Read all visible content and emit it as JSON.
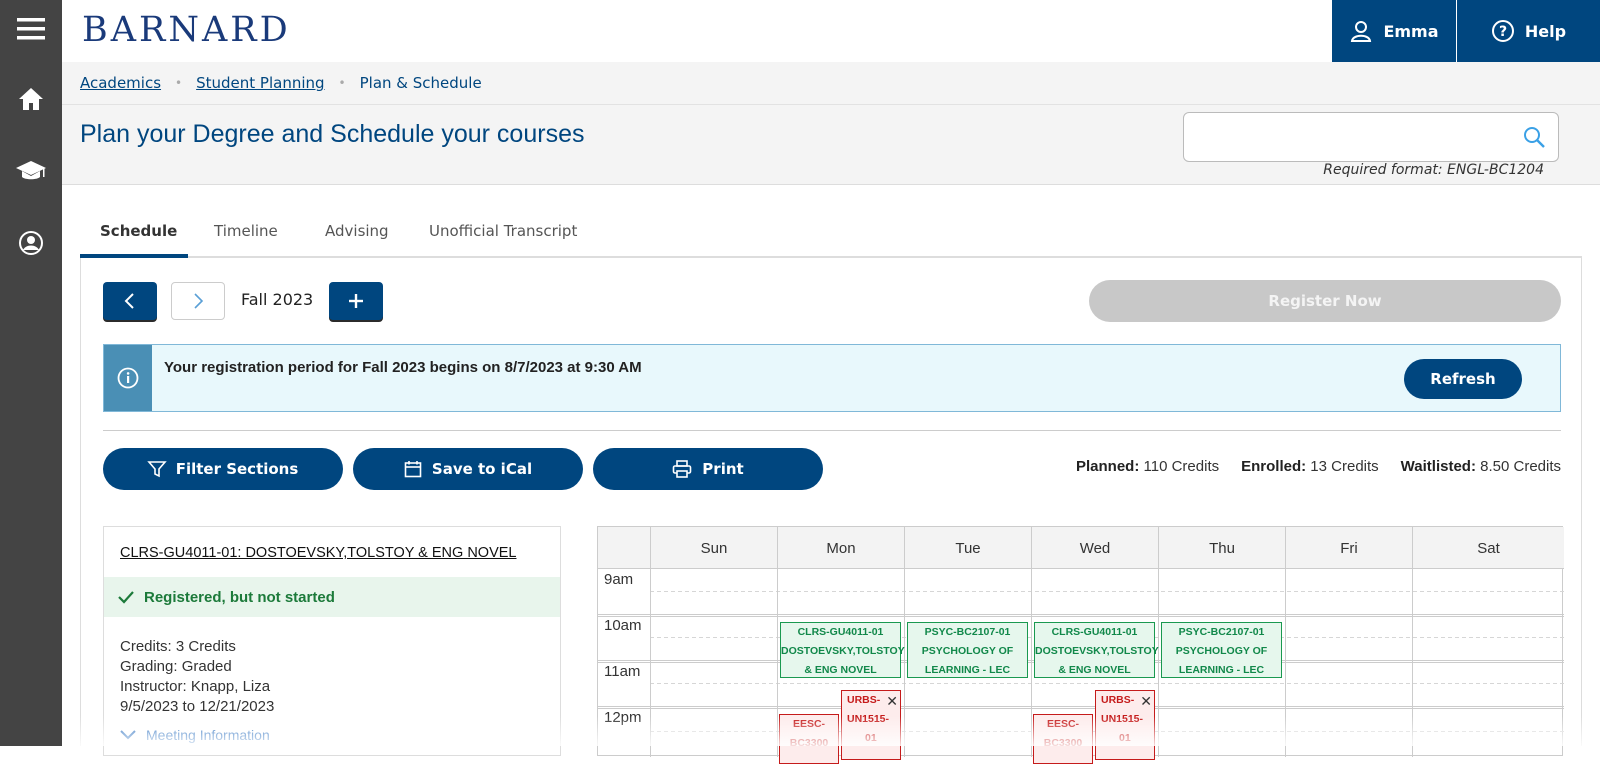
{
  "header": {
    "logo": "BARNARD",
    "user_label": "Emma",
    "help_label": "Help",
    "brand_color": "#00467f"
  },
  "rail": {
    "items": [
      "menu-icon",
      "home-icon",
      "graduation-cap-icon",
      "user-circle-icon"
    ]
  },
  "breadcrumb": {
    "items": [
      "Academics",
      "Student Planning"
    ],
    "current": "Plan & Schedule"
  },
  "page": {
    "title": "Plan your Degree and Schedule your courses",
    "search_value": "",
    "required_format": "Required format: ENGL-BC1204"
  },
  "tabs": [
    "Schedule",
    "Timeline",
    "Advising",
    "Unofficial Transcript"
  ],
  "active_tab": "Schedule",
  "term": {
    "label": "Fall 2023",
    "register_label": "Register Now"
  },
  "alert": {
    "message": "Your registration period for Fall 2023 begins on 8/7/2023 at 9:30 AM",
    "refresh_label": "Refresh"
  },
  "actions": {
    "filter_label": "Filter Sections",
    "ical_label": "Save to iCal",
    "print_label": "Print"
  },
  "credits": {
    "planned_label": "Planned:",
    "planned_value": "110 Credits",
    "enrolled_label": "Enrolled:",
    "enrolled_value": "13 Credits",
    "waitlisted_label": "Waitlisted:",
    "waitlisted_value": "8.50 Credits"
  },
  "course_card": {
    "title": "CLRS-GU4011-01: DOSTOEVSKY,TOLSTOY & ENG NOVEL",
    "status": "Registered, but not started",
    "credits": "Credits: 3 Credits",
    "grading": "Grading: Graded",
    "instructor": "Instructor: Knapp, Liza",
    "dates": "9/5/2023 to 12/21/2023",
    "meeting_label": "Meeting Information"
  },
  "calendar": {
    "days": [
      "Sun",
      "Mon",
      "Tue",
      "Wed",
      "Thu",
      "Fri",
      "Sat"
    ],
    "times": [
      "9am",
      "10am",
      "11am",
      "12pm"
    ],
    "events": {
      "mon_clrs": [
        "CLRS-GU4011-01",
        "DOSTOEVSKY,TOLSTOY",
        "& ENG NOVEL"
      ],
      "tue_psyc": [
        "PSYC-BC2107-01",
        "PSYCHOLOGY OF",
        "LEARNING - LEC"
      ],
      "wed_clrs": [
        "CLRS-GU4011-01",
        "DOSTOEVSKY,TOLSTOY",
        "& ENG NOVEL"
      ],
      "thu_psyc": [
        "PSYC-BC2107-01",
        "PSYCHOLOGY OF",
        "LEARNING - LEC"
      ],
      "mon_urbs": [
        "URBS-",
        "UN1515-",
        "01"
      ],
      "mon_eesc": [
        "EESC-",
        "BC3300"
      ],
      "wed_urbs": [
        "URBS-",
        "UN1515-",
        "01"
      ],
      "wed_eesc": [
        "EESC-",
        "BC3300"
      ]
    }
  }
}
